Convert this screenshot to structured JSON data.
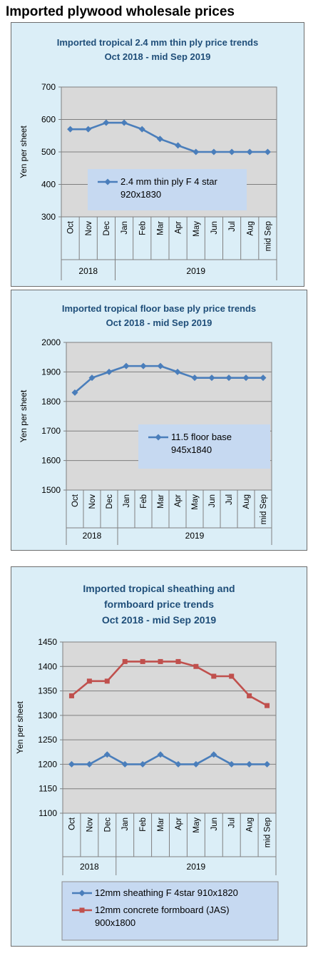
{
  "page_title": "Imported plywood wholesale prices",
  "colors": {
    "series_blue": "#4a7ebb",
    "series_red": "#c0504d",
    "plot_bg": "#d9d9d9",
    "panel_bg": "#dbeef7",
    "title": "#1f4e79",
    "legend_bg": "#c6d9f1"
  },
  "chart_data": [
    {
      "type": "line",
      "title": [
        "Imported tropical 2.4 mm thin ply price trends",
        "Oct 2018 - mid Sep 2019"
      ],
      "ylabel": "Yen per sheet",
      "ylim": [
        300,
        700
      ],
      "yticks": [
        300,
        400,
        500,
        600,
        700
      ],
      "categories": [
        "Oct",
        "Nov",
        "Dec",
        "Jan",
        "Feb",
        "Mar",
        "Apr",
        "May",
        "Jun",
        "Jul",
        "Aug",
        "mid Sep"
      ],
      "groups": [
        {
          "label": "2018",
          "count": 3
        },
        {
          "label": "2019",
          "count": 9
        }
      ],
      "grid": true,
      "legend_position": "center",
      "series": [
        {
          "name": [
            "2.4 mm thin ply F 4 star",
            "920x1830"
          ],
          "color": "#4a7ebb",
          "marker": "diamond",
          "values": [
            570,
            570,
            590,
            590,
            570,
            540,
            520,
            500,
            500,
            500,
            500,
            500
          ]
        }
      ]
    },
    {
      "type": "line",
      "title": [
        "Imported tropical floor base ply price trends",
        "Oct 2018 - mid Sep 2019"
      ],
      "ylabel": "Yen per sheet",
      "ylim": [
        1500,
        2000
      ],
      "yticks": [
        1500,
        1600,
        1700,
        1800,
        1900,
        2000
      ],
      "categories": [
        "Oct",
        "Nov",
        "Dec",
        "Jan",
        "Feb",
        "Mar",
        "Apr",
        "May",
        "Jun",
        "Jul",
        "Aug",
        "mid Sep"
      ],
      "groups": [
        {
          "label": "2018",
          "count": 3
        },
        {
          "label": "2019",
          "count": 9
        }
      ],
      "grid": true,
      "legend_position": "bottom-right",
      "series": [
        {
          "name": [
            "11.5 floor base",
            "945x1840"
          ],
          "color": "#4a7ebb",
          "marker": "diamond",
          "values": [
            1830,
            1880,
            1900,
            1920,
            1920,
            1920,
            1900,
            1880,
            1880,
            1880,
            1880,
            1880
          ]
        }
      ]
    },
    {
      "type": "line",
      "title": [
        "Imported tropical sheathing and",
        "formboard price trends",
        "Oct 2018 - mid Sep 2019"
      ],
      "ylabel": "Yen per sheet",
      "ylim": [
        1100,
        1450
      ],
      "yticks": [
        1100,
        1150,
        1200,
        1250,
        1300,
        1350,
        1400,
        1450
      ],
      "categories": [
        "Oct",
        "Nov",
        "Dec",
        "Jan",
        "Feb",
        "Mar",
        "Apr",
        "May",
        "Jun",
        "Jul",
        "Aug",
        "mid Sep"
      ],
      "groups": [
        {
          "label": "2018",
          "count": 3
        },
        {
          "label": "2019",
          "count": 9
        }
      ],
      "grid": true,
      "legend_position": "bottom",
      "series": [
        {
          "name": [
            "12mm sheathing F 4star 910x1820"
          ],
          "color": "#4a7ebb",
          "marker": "diamond",
          "values": [
            1200,
            1200,
            1220,
            1200,
            1200,
            1220,
            1200,
            1200,
            1220,
            1200,
            1200,
            1200
          ]
        },
        {
          "name": [
            "12mm concrete formboard (JAS)",
            "900x1800"
          ],
          "color": "#c0504d",
          "marker": "square",
          "values": [
            1340,
            1370,
            1370,
            1410,
            1410,
            1410,
            1410,
            1400,
            1380,
            1380,
            1340,
            1320
          ]
        }
      ]
    }
  ]
}
